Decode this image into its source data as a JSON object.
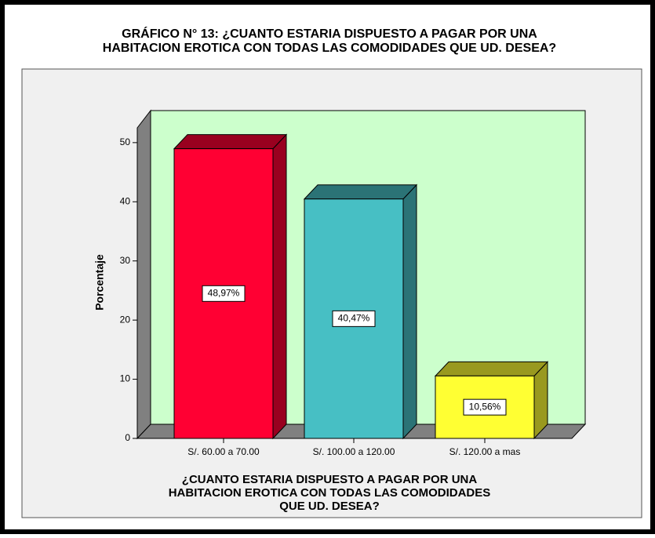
{
  "chart_data": {
    "type": "bar",
    "title": [
      "GRÁFICO N° 13: ¿CUANTO ESTARIA DISPUESTO A PAGAR POR UNA",
      "HABITACION EROTICA CON TODAS LAS COMODIDADES QUE UD. DESEA?"
    ],
    "x_label": [
      "¿CUANTO ESTARIA DISPUESTO A PAGAR POR UNA",
      "HABITACION EROTICA CON TODAS LAS COMODIDADES",
      "QUE UD. DESEA?"
    ],
    "y_label": "Porcentaje",
    "categories": [
      "S/. 60.00 a 70.00",
      "S/. 100.00 a 120.00",
      "S/. 120.00 a mas"
    ],
    "values": [
      48.97,
      40.47,
      10.56
    ],
    "value_labels": [
      "48,97%",
      "40,47%",
      "10,56%"
    ],
    "colors": [
      "#ff0033",
      "#47bfc4",
      "#ffff33"
    ],
    "ylim": [
      0,
      52.5
    ],
    "yticks": [
      0,
      10,
      20,
      30,
      40,
      50
    ]
  }
}
